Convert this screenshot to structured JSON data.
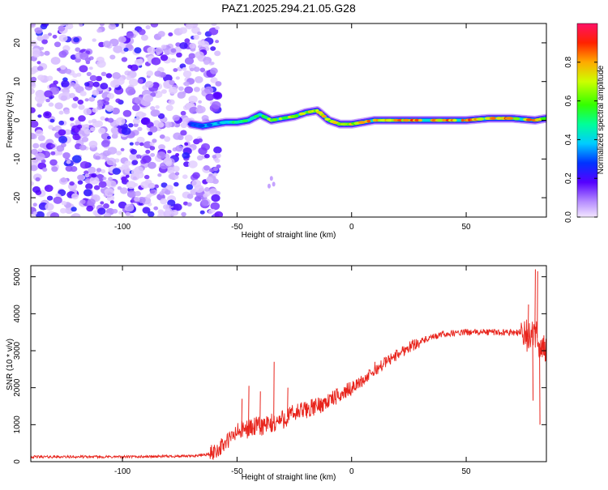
{
  "title": "PAZ1.2025.294.21.05.G28",
  "chart_data": [
    {
      "type": "heatmap",
      "name": "spectrogram",
      "xlabel": "Height of straight line (km)",
      "ylabel": "Frequency (Hz)",
      "xlim": [
        -140,
        85
      ],
      "ylim": [
        -25,
        25
      ],
      "xticks": [
        -100,
        -50,
        0,
        50
      ],
      "xtick_labels": [
        "-100",
        "-50",
        "0",
        "50"
      ],
      "yticks": [
        -20,
        -10,
        0,
        10,
        20
      ],
      "ytick_labels": [
        "-20",
        "-10",
        "0",
        "10",
        "20"
      ],
      "noise_region_x": [
        -140,
        -60
      ],
      "signal_track": {
        "x": [
          -70,
          -65,
          -60,
          -55,
          -50,
          -45,
          -40,
          -35,
          -30,
          -25,
          -20,
          -15,
          -10,
          -5,
          0,
          5,
          10,
          20,
          30,
          40,
          50,
          60,
          70,
          80,
          85
        ],
        "freq": [
          -1,
          -1.5,
          -1,
          -0.5,
          -0.5,
          0,
          1.5,
          0,
          0.5,
          1,
          2,
          2.5,
          0,
          -1,
          -1,
          -0.5,
          0,
          0,
          0,
          0,
          0,
          0.5,
          0.5,
          0,
          0.5
        ],
        "amplitude": [
          0.3,
          0.35,
          0.4,
          0.45,
          0.5,
          0.6,
          0.65,
          0.7,
          0.72,
          0.75,
          0.75,
          0.75,
          0.78,
          0.8,
          0.82,
          0.85,
          0.88,
          0.9,
          0.92,
          0.92,
          0.92,
          0.9,
          0.9,
          0.85,
          0.8
        ]
      }
    },
    {
      "type": "colorbar",
      "name": "colorbar",
      "label": "Normalized spectral amplitude",
      "range": [
        0,
        1
      ],
      "ticks": [
        0,
        0.2,
        0.4,
        0.6,
        0.8
      ],
      "tick_labels": [
        "0.0",
        "0.2",
        "0.4",
        "0.6",
        "0.8"
      ]
    },
    {
      "type": "line",
      "name": "snr",
      "xlabel": "Height of straight line (km)",
      "ylabel": "SNR (10 * v/v)",
      "xlim": [
        -140,
        85
      ],
      "ylim": [
        0,
        5300
      ],
      "xticks": [
        -100,
        -50,
        0,
        50
      ],
      "xtick_labels": [
        "-100",
        "-50",
        "0",
        "50"
      ],
      "yticks": [
        0,
        1000,
        2000,
        3000,
        4000,
        5000
      ],
      "ytick_labels": [
        "0",
        "1000",
        "2000",
        "3000",
        "4000",
        "5000"
      ],
      "color": "#e8241c",
      "trend": {
        "x": [
          -140,
          -100,
          -70,
          -62,
          -58,
          -55,
          -50,
          -45,
          -40,
          -35,
          -30,
          -25,
          -20,
          -15,
          -10,
          -5,
          0,
          5,
          10,
          15,
          20,
          25,
          30,
          35,
          40,
          50,
          60,
          70,
          75,
          78,
          80,
          82,
          84,
          85
        ],
        "y": [
          130,
          130,
          150,
          200,
          350,
          500,
          800,
          900,
          950,
          1000,
          1150,
          1300,
          1400,
          1500,
          1650,
          1800,
          2000,
          2200,
          2450,
          2700,
          2900,
          3100,
          3250,
          3350,
          3450,
          3500,
          3500,
          3500,
          3500,
          3300,
          3500,
          3200,
          3000,
          3100
        ]
      },
      "spikes": [
        {
          "x": -48,
          "y": 1700
        },
        {
          "x": -45,
          "y": 2050
        },
        {
          "x": -34,
          "y": 2700
        },
        {
          "x": -40,
          "y": 1900
        },
        {
          "x": -28,
          "y": 2000
        },
        {
          "x": 10,
          "y": 2700
        },
        {
          "x": 77,
          "y": 4250
        },
        {
          "x": 80,
          "y": 5200
        },
        {
          "x": 81,
          "y": 5150
        },
        {
          "x": 82,
          "y": 1000
        },
        {
          "x": 79,
          "y": 1650
        }
      ]
    }
  ]
}
